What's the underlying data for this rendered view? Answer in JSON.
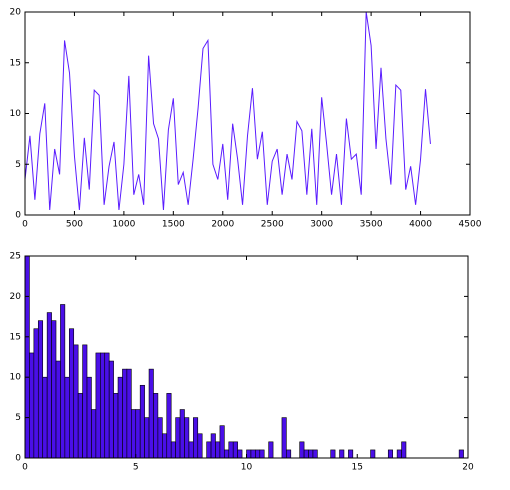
{
  "chart_data": [
    {
      "type": "line",
      "color": "#5a1cff",
      "x": [
        0,
        50,
        100,
        150,
        200,
        250,
        300,
        350,
        400,
        450,
        500,
        550,
        600,
        650,
        700,
        750,
        800,
        850,
        900,
        950,
        1000,
        1050,
        1100,
        1150,
        1200,
        1250,
        1300,
        1350,
        1400,
        1450,
        1500,
        1550,
        1600,
        1650,
        1700,
        1750,
        1800,
        1850,
        1900,
        1950,
        2000,
        2050,
        2100,
        2150,
        2200,
        2250,
        2300,
        2350,
        2400,
        2450,
        2500,
        2550,
        2600,
        2650,
        2700,
        2750,
        2800,
        2850,
        2900,
        2950,
        3000,
        3050,
        3100,
        3150,
        3200,
        3250,
        3300,
        3350,
        3400,
        3450,
        3500,
        3550,
        3600,
        3650,
        3700,
        3750,
        3800,
        3850,
        3900,
        3950,
        4000,
        4050,
        4100
      ],
      "values": [
        3.5,
        7.8,
        1.5,
        8,
        11,
        0.5,
        6.5,
        4,
        17.2,
        14,
        5.8,
        0.5,
        7.6,
        2.5,
        12.3,
        11.8,
        1,
        4.8,
        7.2,
        0.5,
        5,
        13.7,
        2,
        4,
        1,
        15.7,
        9,
        7.5,
        0.5,
        8.4,
        11.5,
        3,
        4.2,
        1,
        5.5,
        10.5,
        16.4,
        17.2,
        5,
        3.5,
        7,
        1.5,
        9,
        5.5,
        1,
        7.8,
        12.5,
        5.5,
        8.2,
        1,
        5.3,
        6.5,
        2,
        6,
        3.5,
        9.2,
        8.3,
        2,
        8.5,
        1,
        11.6,
        7,
        2,
        6,
        1,
        9.5,
        5.5,
        6,
        2,
        20,
        16.7,
        6.5,
        14.5,
        7.5,
        3,
        12.8,
        12.3,
        2.5,
        4.8,
        1,
        5.5,
        12.4,
        7
      ],
      "xlim": [
        0,
        4500
      ],
      "xticks": [
        0,
        500,
        1000,
        1500,
        2000,
        2500,
        3000,
        3500,
        4000,
        4500
      ],
      "ylim": [
        0,
        20
      ],
      "yticks": [
        0,
        5,
        10,
        15,
        20
      ]
    },
    {
      "type": "histogram",
      "color": "#4a0fe8",
      "bins": [
        0,
        0.2,
        0.4,
        0.6,
        0.8,
        1,
        1.2,
        1.4,
        1.6,
        1.8,
        2,
        2.2,
        2.4,
        2.6,
        2.8,
        3,
        3.2,
        3.4,
        3.6,
        3.8,
        4,
        4.2,
        4.4,
        4.6,
        4.8,
        5,
        5.2,
        5.4,
        5.6,
        5.8,
        6,
        6.2,
        6.4,
        6.6,
        6.8,
        7,
        7.2,
        7.4,
        7.6,
        7.8,
        8,
        8.2,
        8.4,
        8.6,
        8.8,
        9,
        9.2,
        9.4,
        9.6,
        9.8,
        10,
        10.2,
        10.4,
        10.6,
        10.8,
        11,
        11.2,
        11.4,
        11.6,
        11.8,
        12,
        12.2,
        12.4,
        12.6,
        12.8,
        13,
        13.2,
        13.4,
        13.6,
        13.8,
        14,
        14.2,
        14.4,
        14.6,
        14.8,
        15,
        15.2,
        15.4,
        15.6,
        15.8,
        16,
        16.2,
        16.4,
        16.6,
        16.8,
        17,
        17.2,
        17.4,
        17.6,
        17.8,
        18,
        18.2,
        18.4,
        18.6,
        18.8,
        19,
        19.2,
        19.4,
        19.6,
        19.8,
        20
      ],
      "values": [
        25,
        13,
        16,
        17,
        10,
        18,
        17,
        12,
        19,
        10,
        16,
        14,
        8,
        14,
        10,
        6,
        13,
        13,
        13,
        12,
        8,
        10,
        11,
        11,
        6,
        6,
        9,
        5,
        11,
        8,
        5,
        3,
        8,
        2,
        5,
        6,
        5,
        2,
        5,
        3,
        0,
        2,
        3,
        2,
        4,
        1,
        2,
        2,
        1,
        0,
        1,
        1,
        1,
        1,
        0,
        2,
        0,
        0,
        5,
        1,
        0,
        0,
        2,
        1,
        1,
        1,
        0,
        0,
        0,
        1,
        0,
        1,
        0,
        1,
        0,
        0,
        0,
        0,
        1,
        0,
        0,
        0,
        1,
        0,
        1,
        2,
        0,
        0,
        0,
        0,
        0,
        0,
        0,
        0,
        0,
        0,
        0,
        0,
        1,
        0
      ],
      "xlim": [
        0,
        20
      ],
      "xticks": [
        0,
        5,
        10,
        15,
        20
      ],
      "ylim": [
        0,
        25
      ],
      "yticks": [
        0,
        5,
        10,
        15,
        20,
        25
      ]
    }
  ]
}
